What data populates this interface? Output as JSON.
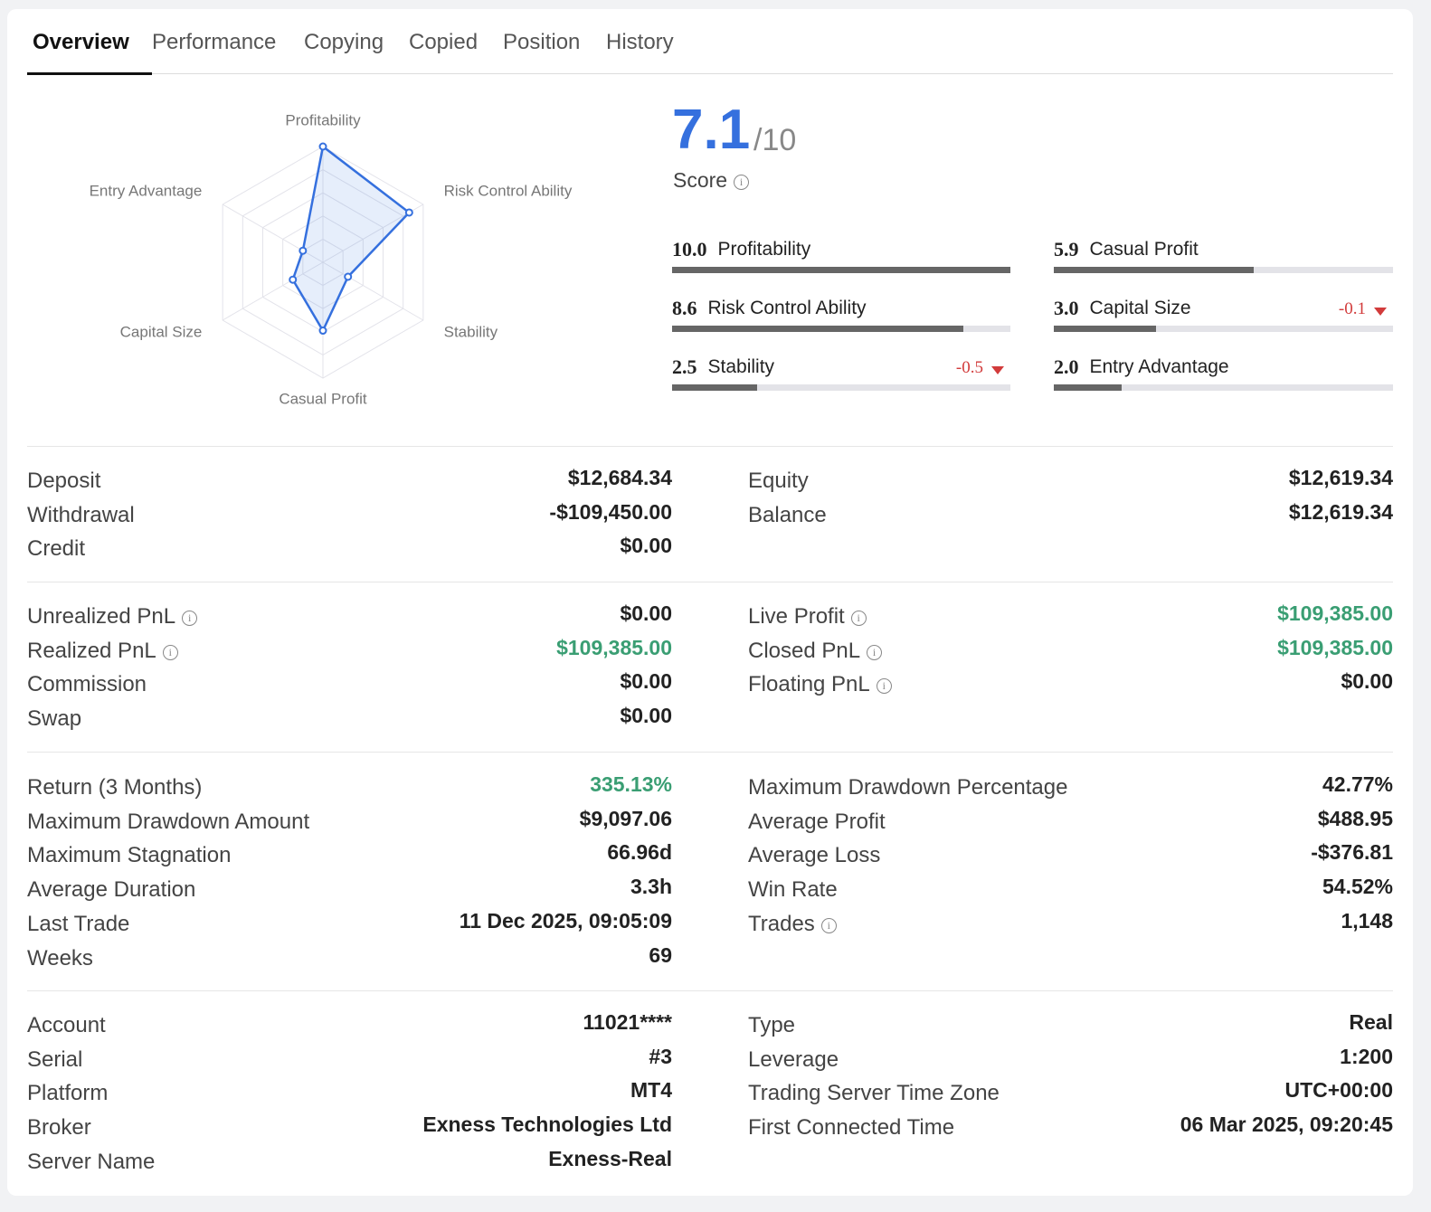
{
  "tabs": {
    "items": [
      "Overview",
      "Performance",
      "Copying",
      "Copied",
      "Position",
      "History"
    ],
    "active": 0
  },
  "chart_data": {
    "type": "radar",
    "categories": [
      "Profitability",
      "Risk Control Ability",
      "Stability",
      "Casual Profit",
      "Capital Size",
      "Entry Advantage"
    ],
    "values": [
      10,
      8.6,
      2.5,
      5.9,
      3,
      2
    ],
    "value_labels": [
      "10.0",
      "8.6",
      "2.5",
      "5.9",
      "3.0",
      "2.0"
    ],
    "changes": [
      null,
      null,
      -0.5,
      null,
      -0.1,
      null
    ],
    "rlim": [
      0,
      10
    ],
    "rticks": [
      2,
      4,
      6,
      8,
      10
    ],
    "color": "#3570de",
    "grid": true
  },
  "score": {
    "value": 7.1,
    "max": "/10",
    "label": "Score",
    "info": true
  },
  "stats": [
    {
      "left": [
        {
          "label": "Deposit",
          "value": "$12,684.34"
        },
        {
          "label": "Withdrawal",
          "value": "-$109,450.00"
        },
        {
          "label": "Credit",
          "value": "$0.00"
        }
      ],
      "right": [
        {
          "label": "Equity",
          "value": "$12,619.34"
        },
        {
          "label": "Balance",
          "value": "$12,619.34"
        }
      ]
    },
    {
      "left": [
        {
          "label": "Unrealized PnL",
          "value": "$0.00",
          "info": true
        },
        {
          "label": "Realized PnL",
          "value": "$109,385.00",
          "info": true,
          "color": "#3a9e73"
        },
        {
          "label": "Commission",
          "value": "$0.00"
        },
        {
          "label": "Swap",
          "value": "$0.00"
        }
      ],
      "right": [
        {
          "label": "Live Profit",
          "value": "$109,385.00",
          "info": true,
          "color": "#3a9e73"
        },
        {
          "label": "Closed PnL",
          "value": "$109,385.00",
          "info": true,
          "color": "#3a9e73"
        },
        {
          "label": "Floating PnL",
          "value": "$0.00",
          "info": true
        }
      ]
    },
    {
      "left": [
        {
          "label": "Return (3 Months)",
          "value": "335.13%",
          "color": "#3a9e73"
        },
        {
          "label": "Maximum Drawdown Amount",
          "value": "$9,097.06"
        },
        {
          "label": "Maximum Stagnation",
          "value": "66.96d"
        },
        {
          "label": "Average Duration",
          "value": "3.3h"
        },
        {
          "label": "Last Trade",
          "value": "11 Dec 2025, 09:05:09"
        },
        {
          "label": "Weeks",
          "value": "69"
        }
      ],
      "right": [
        {
          "label": "Maximum Drawdown Percentage",
          "value": "42.77%"
        },
        {
          "label": "Average Profit",
          "value": "$488.95"
        },
        {
          "label": "Average Loss",
          "value": "-$376.81"
        },
        {
          "label": "Win Rate",
          "value": "54.52%"
        },
        {
          "label": "Trades",
          "value": "1,148",
          "info": true
        }
      ]
    },
    {
      "left": [
        {
          "label": "Account",
          "value": "11021****"
        },
        {
          "label": "Serial",
          "value": "#3"
        },
        {
          "label": "Platform",
          "value": "MT4"
        },
        {
          "label": "Broker",
          "value": "Exness Technologies Ltd"
        },
        {
          "label": "Server Name",
          "value": "Exness-Real"
        }
      ],
      "right": [
        {
          "label": "Type",
          "value": "Real"
        },
        {
          "label": "Leverage",
          "value": "1:200"
        },
        {
          "label": "Trading Server Time Zone",
          "value": "UTC+00:00"
        },
        {
          "label": "First Connected Time",
          "value": "06 Mar 2025, 09:20:45"
        }
      ]
    }
  ]
}
